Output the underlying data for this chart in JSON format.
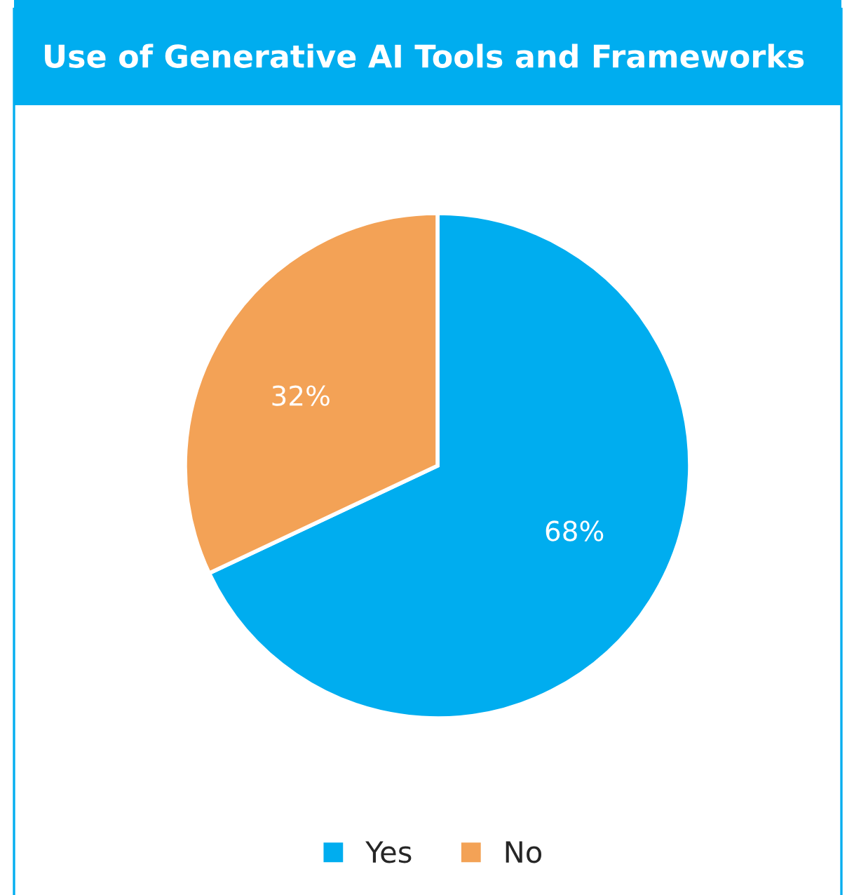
{
  "chart_data": {
    "type": "pie",
    "title": "Use of Generative AI Tools and Frameworks",
    "categories": [
      "Yes",
      "No"
    ],
    "values": [
      68,
      32
    ],
    "colors": [
      "#00adef",
      "#f3a256"
    ],
    "value_labels": [
      "68%",
      "32%"
    ],
    "legend": "bottom"
  }
}
